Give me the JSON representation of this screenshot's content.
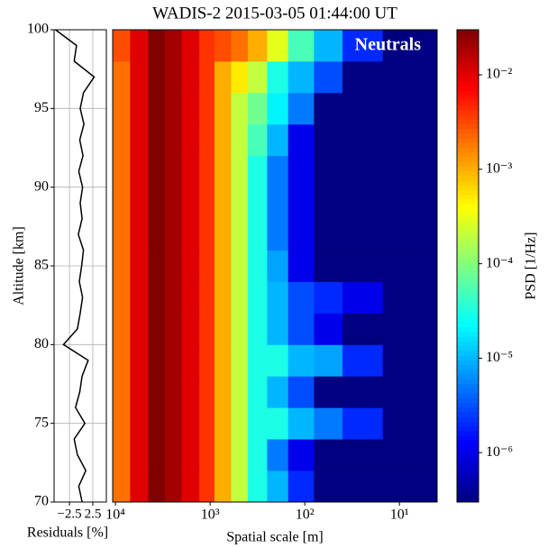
{
  "chart_data": [
    {
      "type": "line",
      "xlabel": "Residuals [%]",
      "ylabel": "Altitude [km]",
      "xlim": [
        -5.8,
        5.4
      ],
      "ylim": [
        70,
        100
      ],
      "xticks": [
        {
          "value": -2.5,
          "label": "−2.5"
        },
        {
          "value": 2.5,
          "label": "2.5"
        }
      ],
      "yticks": [
        70,
        75,
        80,
        85,
        90,
        95,
        100
      ],
      "grid": true,
      "color": "#000000",
      "y": [
        70,
        71,
        72,
        73,
        74,
        75,
        76,
        77,
        78,
        79,
        80,
        81,
        82,
        83,
        84,
        85,
        86,
        87,
        88,
        89,
        90,
        91,
        92,
        93,
        94,
        95,
        96,
        97,
        98,
        99,
        100
      ],
      "values": [
        0.2,
        -0.5,
        1.0,
        -0.8,
        -1.5,
        0.8,
        -1.2,
        -0.3,
        0.2,
        1.5,
        -3.8,
        -0.8,
        -0.2,
        0.3,
        -0.4,
        0.1,
        0.5,
        -0.6,
        0.2,
        -0.2,
        0.3,
        -0.5,
        0.4,
        -0.3,
        0.6,
        -0.2,
        0.5,
        2.8,
        -1.5,
        -1.0,
        -5.5
      ]
    },
    {
      "type": "heatmap",
      "title": "WADIS-2 2015-03-05 01:44:00 UT",
      "xlabel": "Spatial scale [m]",
      "annotation": "Neutrals",
      "log_x": true,
      "colormap": "jet",
      "xlim": [
        10700,
        4
      ],
      "ylim": [
        70,
        100
      ],
      "xticks": [
        {
          "value": 10000,
          "label": "10⁴"
        },
        {
          "value": 1000,
          "label": "10³"
        },
        {
          "value": 100,
          "label": "10²"
        },
        {
          "value": 10,
          "label": "10¹"
        }
      ],
      "xbins": [
        10700,
        7000,
        4500,
        3000,
        2000,
        1300,
        900,
        600,
        400,
        250,
        150,
        80,
        40,
        15,
        4
      ],
      "ybins": [
        70,
        72,
        74,
        76,
        78,
        80,
        82,
        84,
        86,
        88,
        90,
        92,
        94,
        96,
        98,
        100
      ],
      "values": [
        [
          0.002,
          0.01,
          0.03,
          0.02,
          0.01,
          0.004,
          0.001,
          0.0002,
          3e-05,
          1e-05,
          2e-06,
          3e-07,
          3e-07,
          3e-07
        ],
        [
          0.002,
          0.01,
          0.03,
          0.02,
          0.01,
          0.004,
          0.001,
          0.0002,
          3e-05,
          5e-06,
          1e-06,
          3e-07,
          3e-07,
          3e-07
        ],
        [
          0.002,
          0.01,
          0.03,
          0.02,
          0.01,
          0.004,
          0.001,
          0.0002,
          3e-05,
          3e-05,
          1e-05,
          5e-06,
          2e-06,
          3e-07
        ],
        [
          0.002,
          0.01,
          0.03,
          0.02,
          0.01,
          0.004,
          0.001,
          0.0002,
          3e-05,
          1e-05,
          3e-06,
          3e-07,
          3e-07,
          3e-07
        ],
        [
          0.002,
          0.01,
          0.03,
          0.02,
          0.01,
          0.004,
          0.001,
          0.0002,
          3e-05,
          3e-05,
          1e-05,
          8e-06,
          2e-06,
          3e-07
        ],
        [
          0.002,
          0.01,
          0.03,
          0.02,
          0.01,
          0.004,
          0.001,
          0.0002,
          3e-05,
          1e-05,
          3e-06,
          1e-06,
          3e-07,
          3e-07
        ],
        [
          0.002,
          0.01,
          0.03,
          0.02,
          0.01,
          0.004,
          0.001,
          0.0002,
          3e-05,
          1e-05,
          3e-06,
          2e-06,
          1e-06,
          3e-07
        ],
        [
          0.002,
          0.01,
          0.03,
          0.02,
          0.01,
          0.004,
          0.001,
          0.0002,
          3e-05,
          8e-06,
          1e-06,
          3e-07,
          3e-07,
          3e-07
        ],
        [
          0.002,
          0.01,
          0.03,
          0.02,
          0.01,
          0.004,
          0.001,
          0.0002,
          3e-05,
          5e-06,
          1e-06,
          3e-07,
          3e-07,
          3e-07
        ],
        [
          0.002,
          0.01,
          0.03,
          0.02,
          0.01,
          0.004,
          0.001,
          0.0002,
          3e-05,
          5e-06,
          1e-06,
          3e-07,
          3e-07,
          3e-07
        ],
        [
          0.002,
          0.01,
          0.03,
          0.02,
          0.01,
          0.004,
          0.001,
          0.0002,
          3e-05,
          5e-06,
          1e-06,
          3e-07,
          3e-07,
          3e-07
        ],
        [
          0.002,
          0.01,
          0.03,
          0.02,
          0.01,
          0.004,
          0.001,
          0.0002,
          5e-05,
          1e-05,
          1e-06,
          3e-07,
          3e-07,
          3e-07
        ],
        [
          0.002,
          0.01,
          0.03,
          0.02,
          0.01,
          0.004,
          0.001,
          0.0002,
          8e-05,
          2e-05,
          5e-06,
          3e-07,
          3e-07,
          3e-07
        ],
        [
          0.002,
          0.01,
          0.03,
          0.02,
          0.01,
          0.004,
          0.001,
          0.0005,
          0.0002,
          3e-05,
          1e-05,
          3e-06,
          3e-07,
          3e-07
        ],
        [
          0.003,
          0.01,
          0.03,
          0.02,
          0.01,
          0.004,
          0.003,
          0.002,
          0.001,
          0.0003,
          5e-05,
          1e-05,
          2e-06,
          3e-07
        ]
      ],
      "colorbar": {
        "label": "PSD [1/Hz]",
        "lim": [
          3e-07,
          0.03
        ],
        "log": true,
        "ticks": [
          {
            "value": 1e-06,
            "label": "10⁻⁶"
          },
          {
            "value": 1e-05,
            "label": "10⁻⁵"
          },
          {
            "value": 0.0001,
            "label": "10⁻⁴"
          },
          {
            "value": 0.001,
            "label": "10⁻³"
          },
          {
            "value": 0.01,
            "label": "10⁻²"
          }
        ]
      }
    }
  ]
}
